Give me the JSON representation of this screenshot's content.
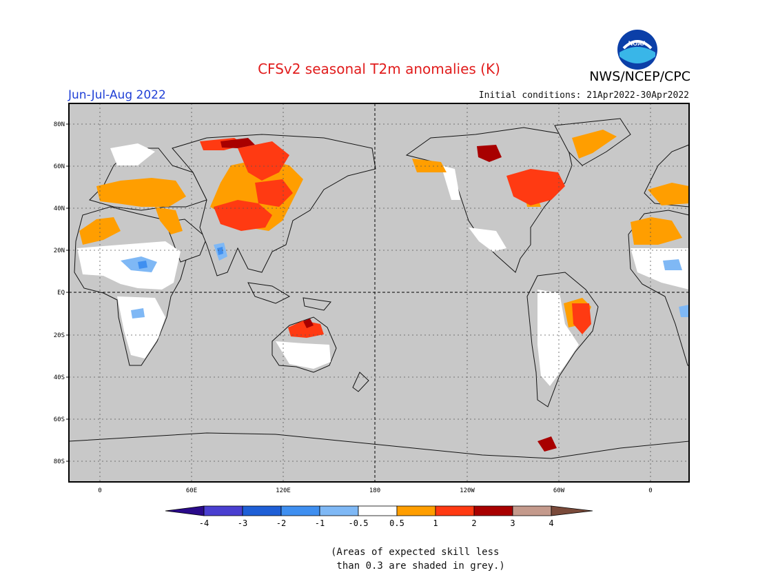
{
  "title": "CFSv2 seasonal T2m anomalies (K)",
  "organization": "NWS/NCEP/CPC",
  "logo_text": "NOAA",
  "period": "Jun-Jul-Aug 2022",
  "initial_conditions": "Initial conditions: 21Apr2022-30Apr2022",
  "lat_labels": [
    "80N",
    "60N",
    "40N",
    "20N",
    "EQ",
    "20S",
    "40S",
    "60S",
    "80S"
  ],
  "lon_labels": [
    "0",
    "60E",
    "120E",
    "180",
    "120W",
    "60W",
    "0"
  ],
  "colorbar": {
    "tick_labels": [
      "-4",
      "-3",
      "-2",
      "-1",
      "-0.5",
      "0.5",
      "1",
      "2",
      "3",
      "4"
    ],
    "colors": [
      "#2a0a8a",
      "#4a3fd0",
      "#1f5fd6",
      "#3f8ff0",
      "#7fb8f5",
      "#ffffff",
      "#ff9e00",
      "#ff3a12",
      "#a80000",
      "#c49a8c",
      "#7a4a3a"
    ]
  },
  "note_line1": "(Areas of expected skill less",
  "note_line2": " than 0.3 are shaded in grey.)",
  "colors": {
    "ocean": "#c8c8c8",
    "no_skill": "#c8c8c8",
    "neutral": "#ffffff",
    "warm_weak": "#ff9e00",
    "warm_mod": "#ff3a12",
    "warm_strong": "#a80000",
    "cool_weak": "#7fb8f5",
    "cool_mod": "#3f8ff0"
  }
}
